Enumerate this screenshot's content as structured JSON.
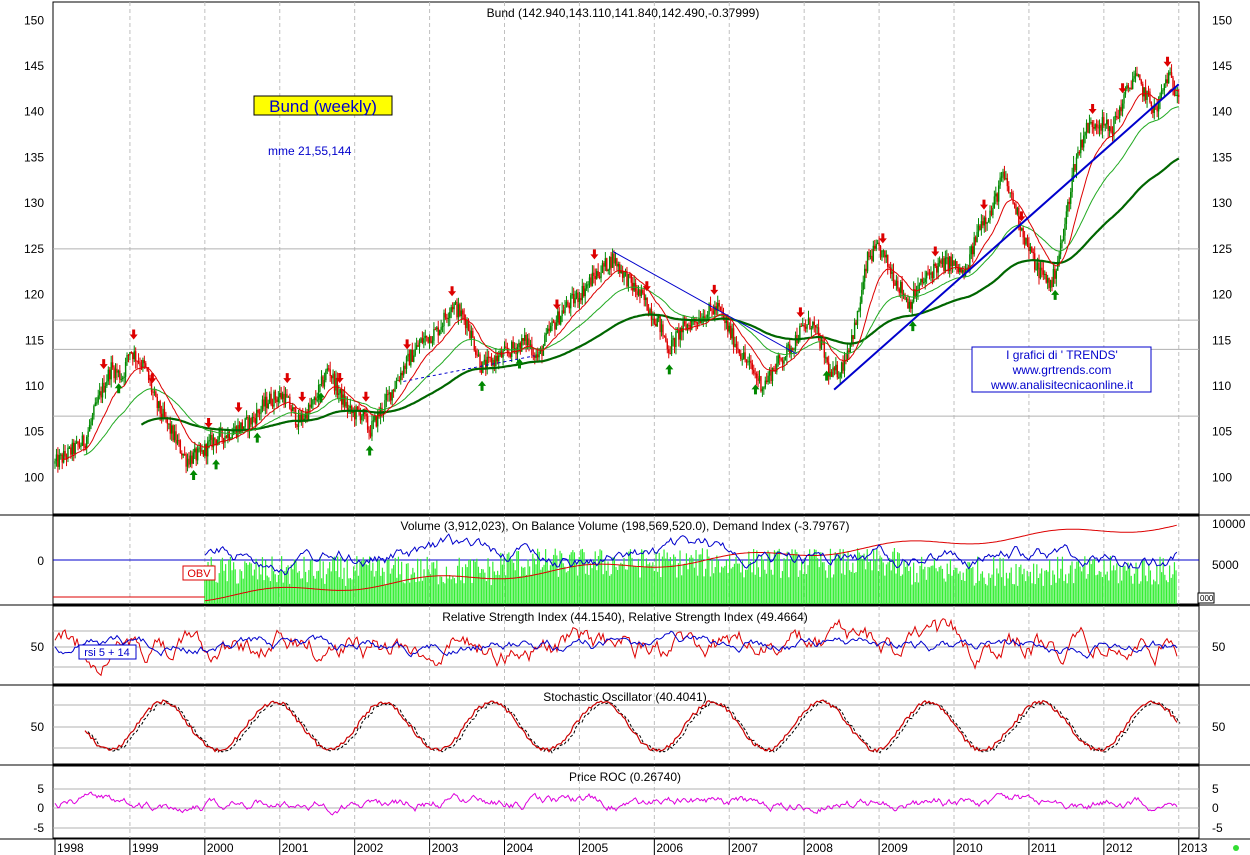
{
  "chart_data": [
    {
      "type": "candlestick",
      "title": "Bund (142.940,143.110,141.840,142.490,-0.37999)",
      "label_box": "Bund (weekly)",
      "ma_label": "mme 21,55,144",
      "credits": [
        "I grafici di ' TRENDS'",
        "www.grtrends.com",
        "www.analisitecnicaonline.it"
      ],
      "ylim": [
        96,
        152
      ],
      "yticks": [
        100,
        105,
        110,
        115,
        120,
        125,
        130,
        135,
        140,
        145,
        150
      ],
      "hlines": [
        125,
        117.2,
        114,
        106.7
      ],
      "x_years": [
        "1998",
        "1999",
        "2000",
        "2001",
        "2002",
        "2003",
        "2004",
        "2005",
        "2006",
        "2007",
        "2008",
        "2009",
        "2010",
        "2011",
        "2012",
        "2013"
      ],
      "price_anchors": [
        [
          1998.0,
          101.5
        ],
        [
          1998.4,
          104
        ],
        [
          1998.6,
          109
        ],
        [
          1998.75,
          112
        ],
        [
          1998.9,
          111
        ],
        [
          1999.0,
          114
        ],
        [
          1999.2,
          112
        ],
        [
          1999.35,
          108
        ],
        [
          1999.55,
          105
        ],
        [
          1999.75,
          102
        ],
        [
          1999.95,
          102.5
        ],
        [
          2000.1,
          104
        ],
        [
          2000.35,
          105
        ],
        [
          2000.6,
          106
        ],
        [
          2000.85,
          108.5
        ],
        [
          2001.05,
          109
        ],
        [
          2001.25,
          106
        ],
        [
          2001.45,
          108
        ],
        [
          2001.65,
          112
        ],
        [
          2001.8,
          109
        ],
        [
          2001.95,
          107
        ],
        [
          2002.1,
          107
        ],
        [
          2002.2,
          105
        ],
        [
          2002.4,
          108
        ],
        [
          2002.65,
          112
        ],
        [
          2002.9,
          115
        ],
        [
          2003.1,
          116
        ],
        [
          2003.3,
          119
        ],
        [
          2003.5,
          117
        ],
        [
          2003.7,
          112
        ],
        [
          2003.9,
          113
        ],
        [
          2004.1,
          114
        ],
        [
          2004.3,
          115
        ],
        [
          2004.45,
          113
        ],
        [
          2004.6,
          116
        ],
        [
          2004.8,
          118.5
        ],
        [
          2005.0,
          120
        ],
        [
          2005.2,
          122
        ],
        [
          2005.45,
          124
        ],
        [
          2005.7,
          121
        ],
        [
          2005.85,
          119.5
        ],
        [
          2006.05,
          117
        ],
        [
          2006.2,
          114
        ],
        [
          2006.35,
          116
        ],
        [
          2006.5,
          117
        ],
        [
          2006.7,
          118
        ],
        [
          2006.85,
          118.5
        ],
        [
          2007.0,
          116
        ],
        [
          2007.2,
          113
        ],
        [
          2007.45,
          110
        ],
        [
          2007.6,
          112
        ],
        [
          2007.8,
          114
        ],
        [
          2007.95,
          116
        ],
        [
          2008.1,
          117
        ],
        [
          2008.25,
          114
        ],
        [
          2008.35,
          111
        ],
        [
          2008.5,
          112
        ],
        [
          2008.7,
          117
        ],
        [
          2008.85,
          124
        ],
        [
          2009.0,
          125
        ],
        [
          2009.2,
          122
        ],
        [
          2009.4,
          119
        ],
        [
          2009.55,
          121
        ],
        [
          2009.75,
          123
        ],
        [
          2009.95,
          123.5
        ],
        [
          2010.15,
          122
        ],
        [
          2010.35,
          128
        ],
        [
          2010.5,
          129
        ],
        [
          2010.65,
          133
        ],
        [
          2010.8,
          130
        ],
        [
          2010.95,
          126
        ],
        [
          2011.1,
          123
        ],
        [
          2011.3,
          121
        ],
        [
          2011.45,
          126
        ],
        [
          2011.6,
          134
        ],
        [
          2011.75,
          138
        ],
        [
          2011.9,
          139
        ],
        [
          2012.1,
          138
        ],
        [
          2012.25,
          141
        ],
        [
          2012.4,
          144
        ],
        [
          2012.55,
          142
        ],
        [
          2012.7,
          140
        ],
        [
          2012.85,
          144
        ],
        [
          2012.95,
          142.5
        ],
        [
          2013.0,
          142.5
        ]
      ],
      "signals": [
        {
          "x": 1998.65,
          "dir": "down"
        },
        {
          "x": 1998.85,
          "dir": "up"
        },
        {
          "x": 1999.05,
          "dir": "down"
        },
        {
          "x": 1999.3,
          "dir": "down"
        },
        {
          "x": 1999.85,
          "dir": "up"
        },
        {
          "x": 2000.05,
          "dir": "down"
        },
        {
          "x": 2000.15,
          "dir": "up"
        },
        {
          "x": 2000.45,
          "dir": "down"
        },
        {
          "x": 2000.7,
          "dir": "up"
        },
        {
          "x": 2001.1,
          "dir": "down"
        },
        {
          "x": 2001.3,
          "dir": "down"
        },
        {
          "x": 2001.55,
          "dir": "up"
        },
        {
          "x": 2001.8,
          "dir": "down"
        },
        {
          "x": 2002.15,
          "dir": "down"
        },
        {
          "x": 2002.2,
          "dir": "up"
        },
        {
          "x": 2002.7,
          "dir": "down"
        },
        {
          "x": 2003.3,
          "dir": "down"
        },
        {
          "x": 2003.7,
          "dir": "up"
        },
        {
          "x": 2004.2,
          "dir": "up"
        },
        {
          "x": 2004.7,
          "dir": "down"
        },
        {
          "x": 2005.2,
          "dir": "down"
        },
        {
          "x": 2005.9,
          "dir": "down"
        },
        {
          "x": 2006.2,
          "dir": "up"
        },
        {
          "x": 2006.8,
          "dir": "down"
        },
        {
          "x": 2007.35,
          "dir": "up"
        },
        {
          "x": 2007.95,
          "dir": "down"
        },
        {
          "x": 2008.3,
          "dir": "up"
        },
        {
          "x": 2009.05,
          "dir": "down"
        },
        {
          "x": 2009.45,
          "dir": "up"
        },
        {
          "x": 2009.75,
          "dir": "down"
        },
        {
          "x": 2010.4,
          "dir": "down"
        },
        {
          "x": 2010.9,
          "dir": "down"
        },
        {
          "x": 2011.35,
          "dir": "up"
        },
        {
          "x": 2011.85,
          "dir": "down"
        },
        {
          "x": 2012.25,
          "dir": "down"
        },
        {
          "x": 2012.85,
          "dir": "down"
        }
      ]
    },
    {
      "type": "line",
      "title": "Volume (3,912,023), On Balance Volume (198,569,520.0), Demand Index (-3.79767)",
      "obv_label": "OBV",
      "left_ticks": [
        "0"
      ],
      "right_ticks": [
        "10000",
        "5000"
      ],
      "right_tag": "000"
    },
    {
      "type": "line",
      "title": "Relative Strength Index (44.1540), Relative Strength Index (49.4664)",
      "label_box": "rsi 5 + 14",
      "yticks": [
        "50"
      ]
    },
    {
      "type": "line",
      "title": "Stochastic Oscillator (40.4041)",
      "yticks": [
        "50"
      ]
    },
    {
      "type": "line",
      "title": "Price ROC (0.26740)",
      "yticks": [
        "5",
        "0",
        "-5"
      ]
    }
  ],
  "colors": {
    "up": "#008800",
    "down": "#dd0000",
    "ma_fast": "#dd0000",
    "ma_mid": "#22aa22",
    "ma_slow": "#006600",
    "trend": "#0000cc",
    "volume": "#33ee33",
    "obv": "#0000cc",
    "demand": "#dd0000",
    "rsi_fast": "#dd0000",
    "rsi_slow": "#0000cc",
    "stoch": "#cc0000",
    "roc": "#dd00dd",
    "label_box_bg": "#ffff00",
    "label_box_text": "#0000cc"
  }
}
